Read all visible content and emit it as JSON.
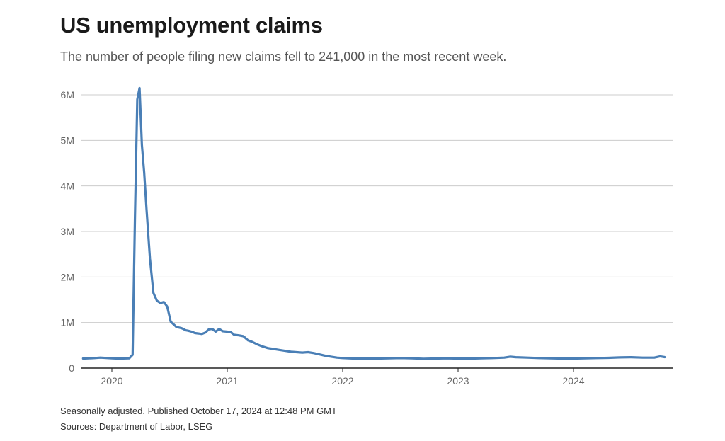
{
  "title": "US unemployment claims",
  "subtitle": "The number of people filing new claims fell to 241,000 in the most recent week.",
  "footer": {
    "note": "Seasonally adjusted. Published October 17, 2024 at 12:48 PM GMT",
    "source": "Sources: Department of Labor, LSEG"
  },
  "colors": {
    "line": "#4a7fb6",
    "grid": "#cccccc",
    "axis": "#222222"
  },
  "chart_data": {
    "type": "line",
    "title": "US unemployment claims",
    "xlabel": "",
    "ylabel": "",
    "x_range": [
      2019.75,
      2024.83
    ],
    "ylim": [
      0,
      6000000
    ],
    "y_ticks": [
      0,
      1000000,
      2000000,
      3000000,
      4000000,
      5000000,
      6000000
    ],
    "y_tick_labels": [
      "0",
      "1M",
      "2M",
      "3M",
      "4M",
      "5M",
      "6M"
    ],
    "x_ticks": [
      2020,
      2021,
      2022,
      2023,
      2024
    ],
    "x_tick_labels": [
      "2020",
      "2021",
      "2022",
      "2023",
      "2024"
    ],
    "grid": "horizontal",
    "series": [
      {
        "x": [
          2019.75,
          2019.8,
          2019.85,
          2019.9,
          2019.95,
          2020.0,
          2020.05,
          2020.1,
          2020.15,
          2020.18,
          2020.2,
          2020.22,
          2020.24,
          2020.26,
          2020.28,
          2020.3,
          2020.33,
          2020.36,
          2020.39,
          2020.42,
          2020.45,
          2020.48,
          2020.51,
          2020.54,
          2020.56,
          2020.58,
          2020.6,
          2020.62,
          2020.64,
          2020.66,
          2020.69,
          2020.72,
          2020.75,
          2020.78,
          2020.81,
          2020.84,
          2020.87,
          2020.9,
          2020.93,
          2020.96,
          2021.0,
          2021.03,
          2021.06,
          2021.1,
          2021.14,
          2021.18,
          2021.22,
          2021.26,
          2021.3,
          2021.35,
          2021.4,
          2021.45,
          2021.5,
          2021.55,
          2021.6,
          2021.65,
          2021.7,
          2021.75,
          2021.8,
          2021.85,
          2021.9,
          2021.95,
          2022.0,
          2022.1,
          2022.2,
          2022.3,
          2022.4,
          2022.5,
          2022.6,
          2022.7,
          2022.8,
          2022.9,
          2023.0,
          2023.1,
          2023.2,
          2023.3,
          2023.4,
          2023.45,
          2023.5,
          2023.6,
          2023.7,
          2023.8,
          2023.9,
          2024.0,
          2024.1,
          2024.2,
          2024.3,
          2024.4,
          2024.5,
          2024.6,
          2024.7,
          2024.75,
          2024.79
        ],
        "values": [
          210000,
          215000,
          220000,
          230000,
          222000,
          215000,
          210000,
          212000,
          215000,
          290000,
          3300000,
          5900000,
          6150000,
          4900000,
          4300000,
          3500000,
          2400000,
          1650000,
          1480000,
          1430000,
          1450000,
          1350000,
          1020000,
          950000,
          900000,
          890000,
          880000,
          860000,
          830000,
          820000,
          800000,
          770000,
          760000,
          750000,
          780000,
          850000,
          860000,
          800000,
          860000,
          810000,
          800000,
          790000,
          730000,
          720000,
          700000,
          610000,
          570000,
          520000,
          480000,
          440000,
          420000,
          400000,
          380000,
          360000,
          350000,
          340000,
          350000,
          330000,
          300000,
          270000,
          250000,
          230000,
          220000,
          210000,
          212000,
          210000,
          215000,
          220000,
          215000,
          205000,
          210000,
          215000,
          210000,
          208000,
          215000,
          220000,
          230000,
          250000,
          240000,
          230000,
          220000,
          215000,
          210000,
          210000,
          215000,
          220000,
          225000,
          235000,
          240000,
          230000,
          230000,
          258000,
          241000
        ]
      }
    ]
  }
}
